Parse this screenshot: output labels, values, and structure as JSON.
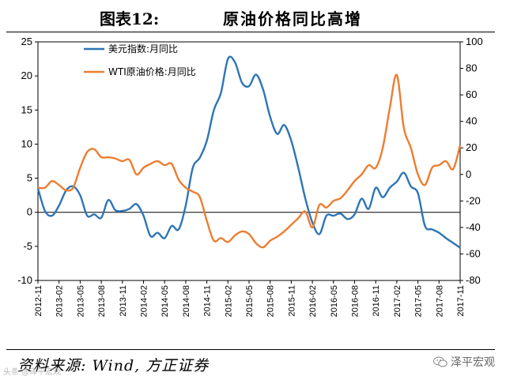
{
  "title": {
    "label": "图表12:",
    "text": "原油价格同比高增"
  },
  "source": "资料来源: Wind, 方正证券",
  "watermark": {
    "brand": "泽平宏观",
    "small": "头条 @泽平宏观"
  },
  "chart_data": {
    "type": "line",
    "title": "原油价格同比高增",
    "x": [
      "2012-11",
      "2012-12",
      "2013-01",
      "2013-02",
      "2013-03",
      "2013-04",
      "2013-05",
      "2013-06",
      "2013-07",
      "2013-08",
      "2013-09",
      "2013-10",
      "2013-11",
      "2013-12",
      "2014-01",
      "2014-02",
      "2014-03",
      "2014-04",
      "2014-05",
      "2014-06",
      "2014-07",
      "2014-08",
      "2014-09",
      "2014-10",
      "2014-11",
      "2014-12",
      "2015-01",
      "2015-02",
      "2015-03",
      "2015-04",
      "2015-05",
      "2015-06",
      "2015-07",
      "2015-08",
      "2015-09",
      "2015-10",
      "2015-11",
      "2015-12",
      "2016-01",
      "2016-02",
      "2016-03",
      "2016-04",
      "2016-05",
      "2016-06",
      "2016-07",
      "2016-08",
      "2016-09",
      "2016-10",
      "2016-11",
      "2016-12",
      "2017-01",
      "2017-02",
      "2017-03",
      "2017-04",
      "2017-05",
      "2017-06",
      "2017-07",
      "2017-08",
      "2017-09",
      "2017-10",
      "2017-11"
    ],
    "x_tick_labels": [
      "2012-11",
      "2013-02",
      "2013-05",
      "2013-08",
      "2013-11",
      "2014-02",
      "2014-05",
      "2014-08",
      "2014-11",
      "2015-02",
      "2015-05",
      "2015-08",
      "2015-11",
      "2016-02",
      "2016-05",
      "2016-08",
      "2016-11",
      "2017-02",
      "2017-05",
      "2017-08",
      "2017-11"
    ],
    "y_left": {
      "min": -10,
      "max": 25,
      "ticks": [
        -10,
        -5,
        0,
        5,
        10,
        15,
        20,
        25
      ]
    },
    "y_right": {
      "min": -80,
      "max": 100,
      "ticks": [
        -80,
        -60,
        -40,
        -20,
        0,
        20,
        40,
        60,
        80,
        100
      ]
    },
    "legend_position": "top-left",
    "series": [
      {
        "name": "美元指数:月同比",
        "axis": "left",
        "color": "#2e75b6",
        "values": [
          3.5,
          0.2,
          -0.5,
          1.0,
          3.2,
          3.8,
          2.5,
          -0.5,
          -0.3,
          -0.8,
          1.8,
          0.3,
          0.2,
          0.5,
          1.2,
          -0.5,
          -3.5,
          -3.0,
          -3.8,
          -2.0,
          -2.5,
          1.0,
          6.5,
          8.0,
          10.5,
          15.0,
          17.5,
          22.5,
          22.0,
          19.0,
          18.5,
          20.2,
          18.0,
          14.0,
          11.5,
          12.8,
          10.5,
          6.5,
          2.0,
          -1.5,
          -3.2,
          -0.5,
          -0.5,
          -0.2,
          -1.0,
          -0.3,
          2.0,
          0.5,
          3.6,
          2.2,
          3.6,
          4.5,
          5.8,
          3.8,
          2.8,
          -2.0,
          -2.5,
          -3.0,
          -3.8,
          -4.5,
          -5.2
        ]
      },
      {
        "name": "WTI原油价格:月同比",
        "axis": "right",
        "color": "#ed7d31",
        "values": [
          -10,
          -10,
          -5,
          -8,
          -12,
          -10,
          5,
          17,
          19,
          13,
          13,
          12,
          10,
          11,
          0,
          5,
          8,
          10,
          7,
          8,
          -4,
          -10,
          -13,
          -17,
          -35,
          -50,
          -48,
          -51,
          -46,
          -43,
          -45,
          -52,
          -55,
          -50,
          -47,
          -43,
          -38,
          -33,
          -28,
          -40,
          -23,
          -25,
          -20,
          -18,
          -12,
          -5,
          0,
          7,
          5,
          20,
          50,
          75,
          35,
          20,
          0,
          -8,
          5,
          7,
          10,
          4,
          22
        ]
      }
    ]
  }
}
